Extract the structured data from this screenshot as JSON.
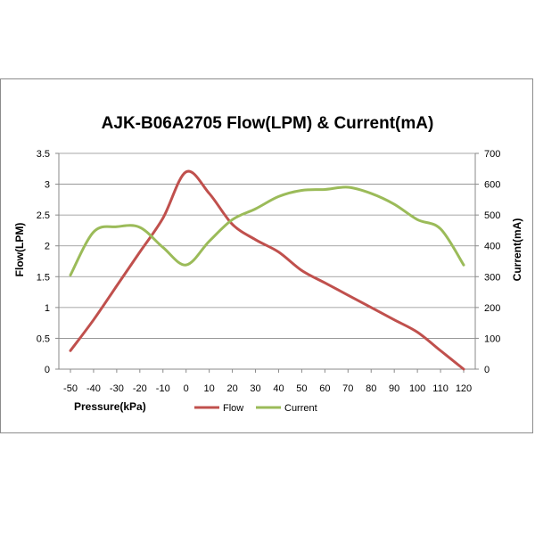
{
  "chart_data": {
    "type": "line",
    "title": "AJK-B06A2705 Flow(LPM) & Current(mA)",
    "xlabel": "Pressure(kPa)",
    "ylabel": "Flow(LPM)",
    "y2label": "Current(mA)",
    "x": [
      -50,
      -40,
      -30,
      -20,
      -10,
      0,
      10,
      20,
      30,
      40,
      50,
      60,
      70,
      80,
      90,
      100,
      110,
      120
    ],
    "x_tick_labels": [
      "-50",
      "-40",
      "-30",
      "-20",
      "-10",
      "0",
      "10",
      "20",
      "30",
      "40",
      "50",
      "60",
      "70",
      "80",
      "90",
      "100",
      "110",
      "120"
    ],
    "ylim": [
      0,
      3.5
    ],
    "y_tick_labels": [
      "0",
      "0.5",
      "1",
      "1.5",
      "2",
      "2.5",
      "3",
      "3.5"
    ],
    "y_ticks": [
      0,
      0.5,
      1,
      1.5,
      2,
      2.5,
      3,
      3.5
    ],
    "y2lim": [
      0,
      700
    ],
    "y2_tick_labels": [
      "0",
      "100",
      "200",
      "300",
      "400",
      "500",
      "600",
      "700"
    ],
    "y2_ticks": [
      0,
      100,
      200,
      300,
      400,
      500,
      600,
      700
    ],
    "grid": "horizontal",
    "legend_position": "bottom",
    "series": [
      {
        "name": "Flow",
        "axis": "left",
        "color": "#c0504d",
        "values": [
          0.3,
          0.8,
          1.35,
          1.9,
          2.45,
          3.2,
          2.85,
          2.35,
          2.1,
          1.9,
          1.6,
          1.4,
          1.2,
          1.0,
          0.8,
          0.6,
          0.3,
          0.0
        ]
      },
      {
        "name": "Current",
        "axis": "right",
        "color": "#9bbb59",
        "values": [
          305,
          445,
          462,
          460,
          395,
          338,
          415,
          485,
          520,
          560,
          580,
          583,
          590,
          570,
          535,
          485,
          455,
          338
        ]
      }
    ]
  }
}
